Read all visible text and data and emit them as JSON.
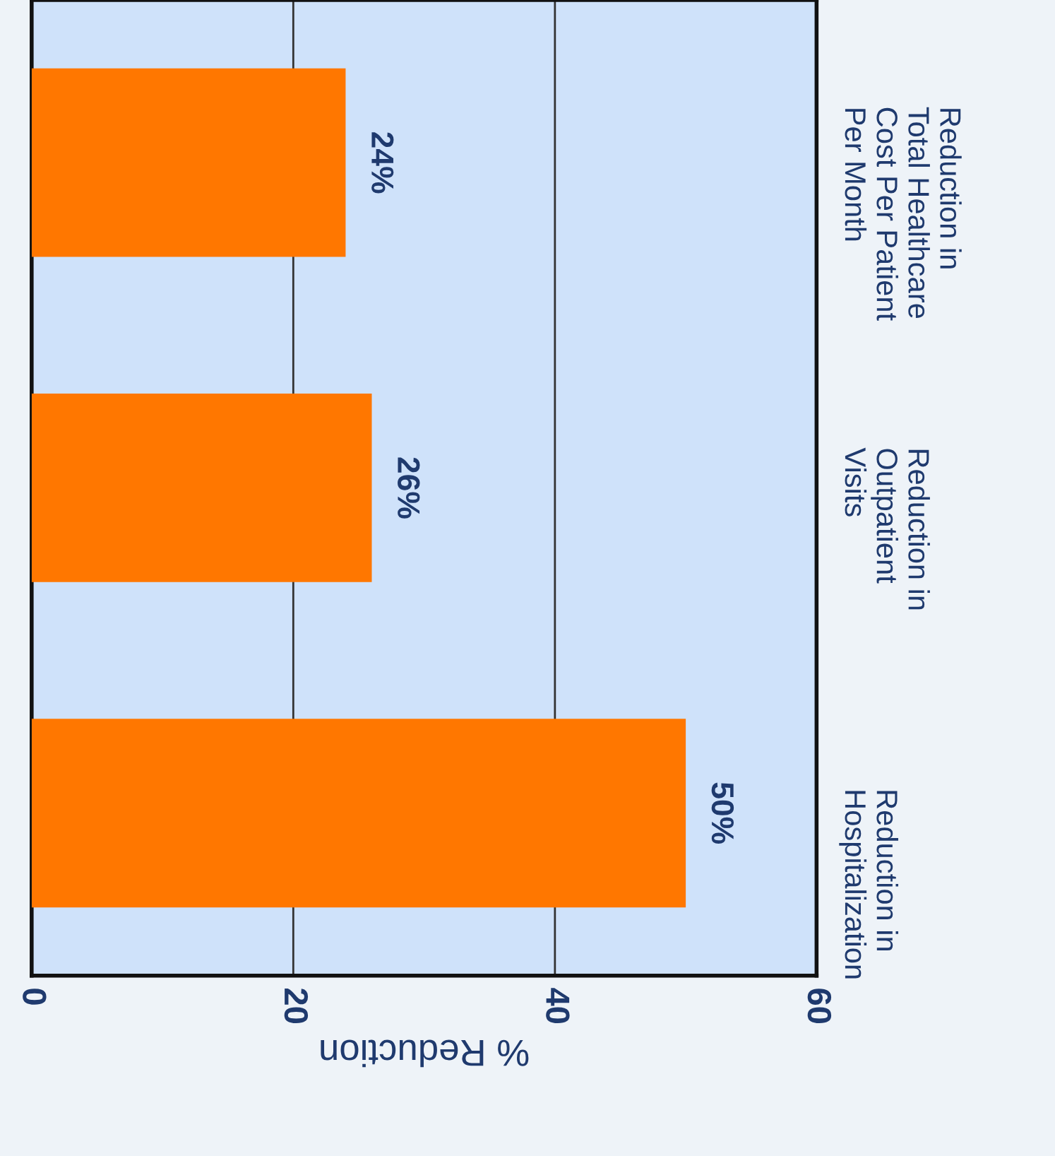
{
  "chart_data": {
    "type": "bar",
    "orientation": "horizontal",
    "xlabel": "% Reduction",
    "categories": [
      "Reduction in\nTotal Healthcare\nCost Per Patient\nPer Month",
      "Reduction in\nOutpatient\nVisits",
      "Reduction in\nHospitalization"
    ],
    "values": [
      24,
      26,
      50
    ],
    "color": "#ff7700",
    "value_labels": [
      "24%",
      "26%",
      "50%"
    ],
    "xlim": [
      0,
      60
    ],
    "xticks": [
      0,
      20,
      40,
      60
    ],
    "grid": "x"
  }
}
